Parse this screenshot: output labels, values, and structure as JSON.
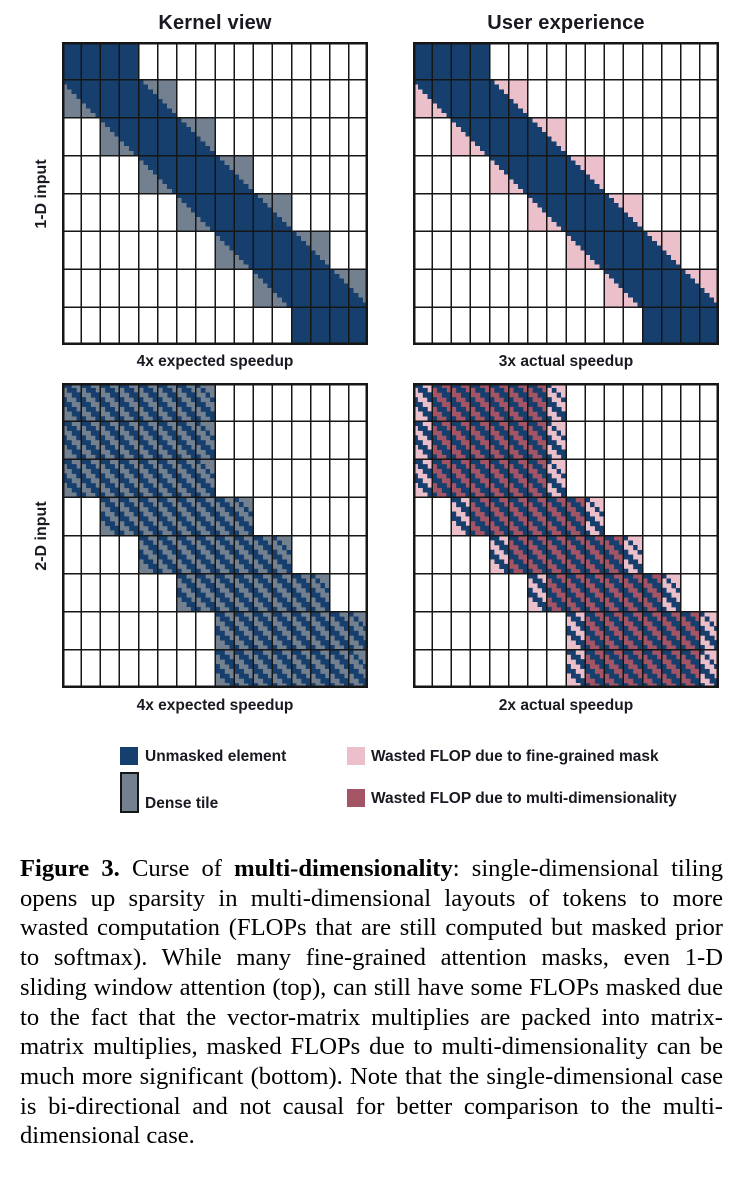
{
  "figure": {
    "column_titles": [
      "Kernel view",
      "User experience"
    ],
    "row_labels": [
      "1-D input",
      "2-D input"
    ],
    "panels": [
      {
        "id": "1d-kernel",
        "type": "1d",
        "scheme": "kernel",
        "caption": "4x expected speedup"
      },
      {
        "id": "1d-user",
        "type": "1d",
        "scheme": "user",
        "caption": "3x actual speedup"
      },
      {
        "id": "2d-kernel",
        "type": "2d",
        "scheme": "kernel",
        "caption": "4x expected speedup"
      },
      {
        "id": "2d-user",
        "type": "2d",
        "scheme": "user",
        "caption": "2x actual speedup"
      }
    ],
    "grid": {
      "cols": 16,
      "rows": 8
    },
    "band_1d": {
      "first_row_full_cols": [
        0,
        3
      ],
      "last_row_full_cols": [
        12,
        15
      ],
      "slope_cols_per_row": 2,
      "band_width_cols": 4
    },
    "band_2d": {
      "active_col_ranges_per_row": [
        [
          0,
          7
        ],
        [
          0,
          7
        ],
        [
          0,
          7
        ],
        [
          2,
          9
        ],
        [
          4,
          11
        ],
        [
          6,
          13
        ],
        [
          8,
          15
        ],
        [
          8,
          15
        ]
      ]
    }
  },
  "legend": {
    "items": [
      {
        "key": "unmasked",
        "label": "Unmasked element"
      },
      {
        "key": "dense_tile",
        "label": "Dense tile"
      },
      {
        "key": "waste_fine",
        "label": "Wasted FLOP due to fine-grained mask"
      },
      {
        "key": "waste_multi",
        "label": "Wasted FLOP due to multi-dimensionality"
      }
    ]
  },
  "caption": {
    "segments": [
      {
        "text": "Figure 3.",
        "bold": true
      },
      {
        "text": "  Curse of ",
        "bold": false
      },
      {
        "text": "multi-dimensionality",
        "bold": true
      },
      {
        "text": ": single-dimensional tiling opens up sparsity in multi-dimensional layouts of tokens to more wasted computation (FLOPs that are still computed but masked prior to softmax). While many fine-grained attention masks, even 1-D sliding window attention (top), can still have some FLOPs masked due to the fact that the vector-matrix multiplies are packed into matrix-matrix multiplies, masked FLOPs due to multi-dimensionality can be much more significant (bottom). Note that the single-dimensional case is bi-directional and not causal for better comparison to the multi-dimensional case.",
        "bold": false
      }
    ]
  },
  "colors": {
    "unmasked": "#173F6E",
    "dense_tile": "#73808F",
    "waste_fine": "#EBC0CA",
    "waste_multi": "#A35465",
    "grid_line": "#161616",
    "text": "#191922",
    "background": "#FFFFFF"
  }
}
